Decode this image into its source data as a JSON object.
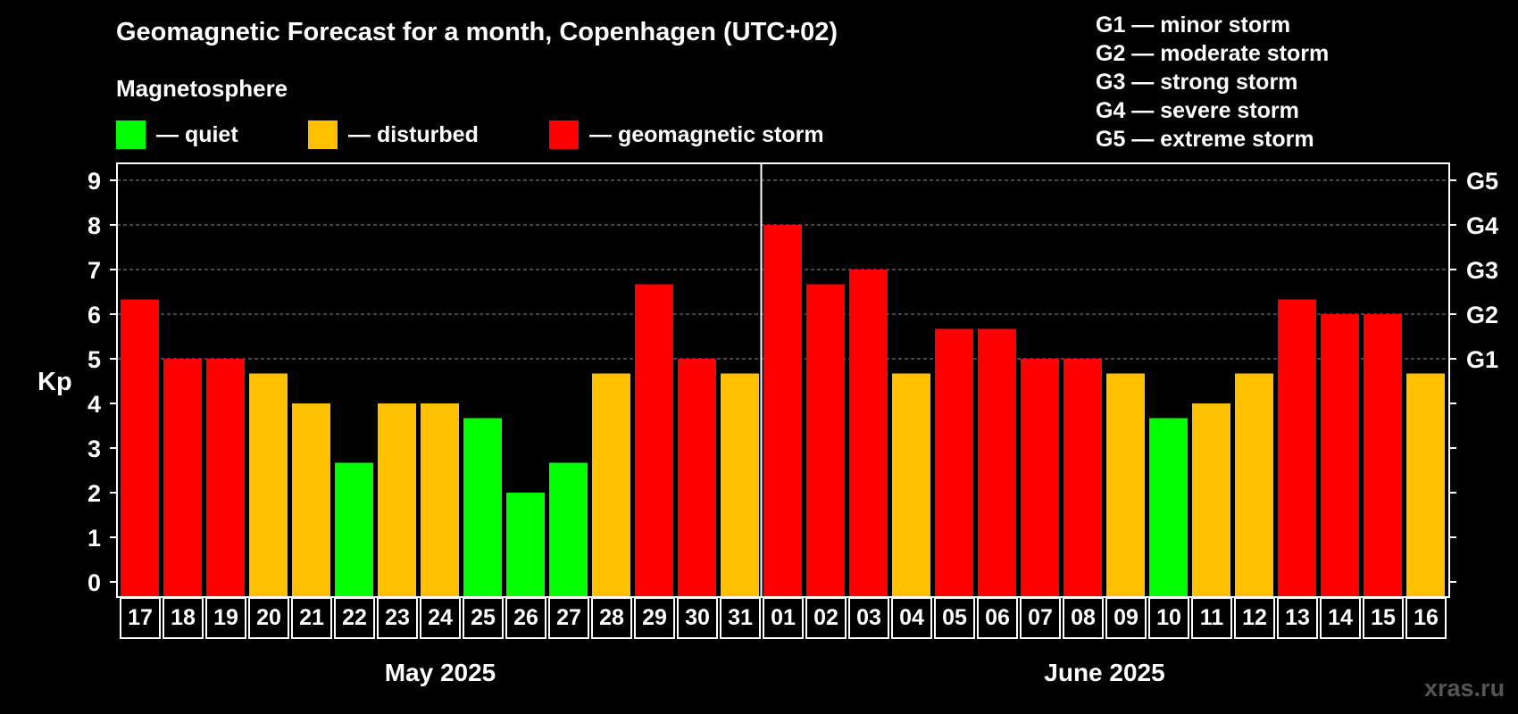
{
  "chart_data": {
    "type": "bar",
    "title": "Geomagnetic Forecast for a month, Copenhagen (UTC+02)",
    "subtitle": "Magnetosphere",
    "ylabel": "Kp",
    "ylim": [
      0,
      9
    ],
    "yticks": [
      "0",
      "1",
      "2",
      "3",
      "4",
      "5",
      "6",
      "7",
      "8",
      "9"
    ],
    "right_ticks": [
      {
        "kp": 5,
        "label": "G1"
      },
      {
        "kp": 6,
        "label": "G2"
      },
      {
        "kp": 7,
        "label": "G3"
      },
      {
        "kp": 8,
        "label": "G4"
      },
      {
        "kp": 9,
        "label": "G5"
      }
    ],
    "grid": true,
    "legend": [
      {
        "label": "— quiet",
        "color": "#00ff00"
      },
      {
        "label": "— disturbed",
        "color": "#ffc000"
      },
      {
        "label": "— geomagnetic storm",
        "color": "#ff0000"
      }
    ],
    "g_scale": [
      "G1 — minor storm",
      "G2 — moderate storm",
      "G3 — strong storm",
      "G4 — severe storm",
      "G5 — extreme storm"
    ],
    "months": [
      {
        "label": "May 2025",
        "start_index": 0,
        "end_index": 14
      },
      {
        "label": "June 2025",
        "start_index": 15,
        "end_index": 30
      }
    ],
    "categories": [
      "17",
      "18",
      "19",
      "20",
      "21",
      "22",
      "23",
      "24",
      "25",
      "26",
      "27",
      "28",
      "29",
      "30",
      "31",
      "01",
      "02",
      "03",
      "04",
      "05",
      "06",
      "07",
      "08",
      "09",
      "10",
      "11",
      "12",
      "13",
      "14",
      "15",
      "16"
    ],
    "values": [
      6.33,
      5,
      5,
      4.67,
      4,
      2.67,
      4,
      4,
      3.67,
      2,
      2.67,
      4.67,
      6.67,
      5,
      4.67,
      8,
      6.67,
      7,
      4.67,
      5.67,
      5.67,
      5,
      5,
      4.67,
      3.67,
      4,
      4.67,
      6.33,
      6,
      6,
      4.67
    ],
    "status": [
      "storm",
      "storm",
      "storm",
      "disturbed",
      "disturbed",
      "quiet",
      "disturbed",
      "disturbed",
      "quiet",
      "quiet",
      "quiet",
      "disturbed",
      "storm",
      "storm",
      "disturbed",
      "storm",
      "storm",
      "storm",
      "disturbed",
      "storm",
      "storm",
      "storm",
      "storm",
      "disturbed",
      "quiet",
      "disturbed",
      "disturbed",
      "storm",
      "storm",
      "storm",
      "disturbed"
    ],
    "colors": {
      "quiet": "#00ff00",
      "disturbed": "#ffc000",
      "storm": "#ff0000"
    }
  },
  "watermark": "xras.ru"
}
